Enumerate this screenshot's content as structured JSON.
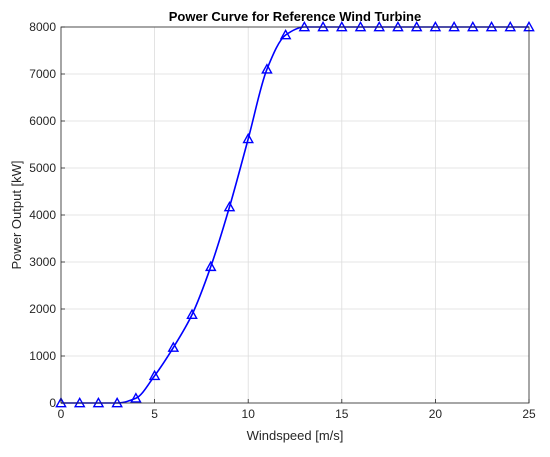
{
  "chart_data": {
    "type": "line",
    "title": "Power Curve for Reference Wind Turbine",
    "xlabel": "Windspeed [m/s]",
    "ylabel": "Power Output [kW]",
    "xlim": [
      0,
      25
    ],
    "ylim": [
      0,
      8000
    ],
    "xticks": [
      0,
      5,
      10,
      15,
      20,
      25
    ],
    "yticks": [
      0,
      1000,
      2000,
      3000,
      4000,
      5000,
      6000,
      7000,
      8000
    ],
    "grid": true,
    "legend": "none",
    "marker": "triangle",
    "line_color": "#0000ff",
    "series": [
      {
        "x": [
          0,
          1,
          2,
          3,
          4,
          5,
          6,
          7,
          8,
          9,
          10,
          11,
          12,
          13,
          14,
          15,
          16,
          17,
          18,
          19,
          20,
          21,
          22,
          23,
          24,
          25
        ],
        "values": [
          0,
          0,
          0,
          0,
          100,
          580,
          1180,
          1880,
          2900,
          4170,
          5620,
          7100,
          7830,
          8000,
          8000,
          8000,
          8000,
          8000,
          8000,
          8000,
          8000,
          8000,
          8000,
          8000,
          8000,
          8000
        ]
      }
    ]
  }
}
